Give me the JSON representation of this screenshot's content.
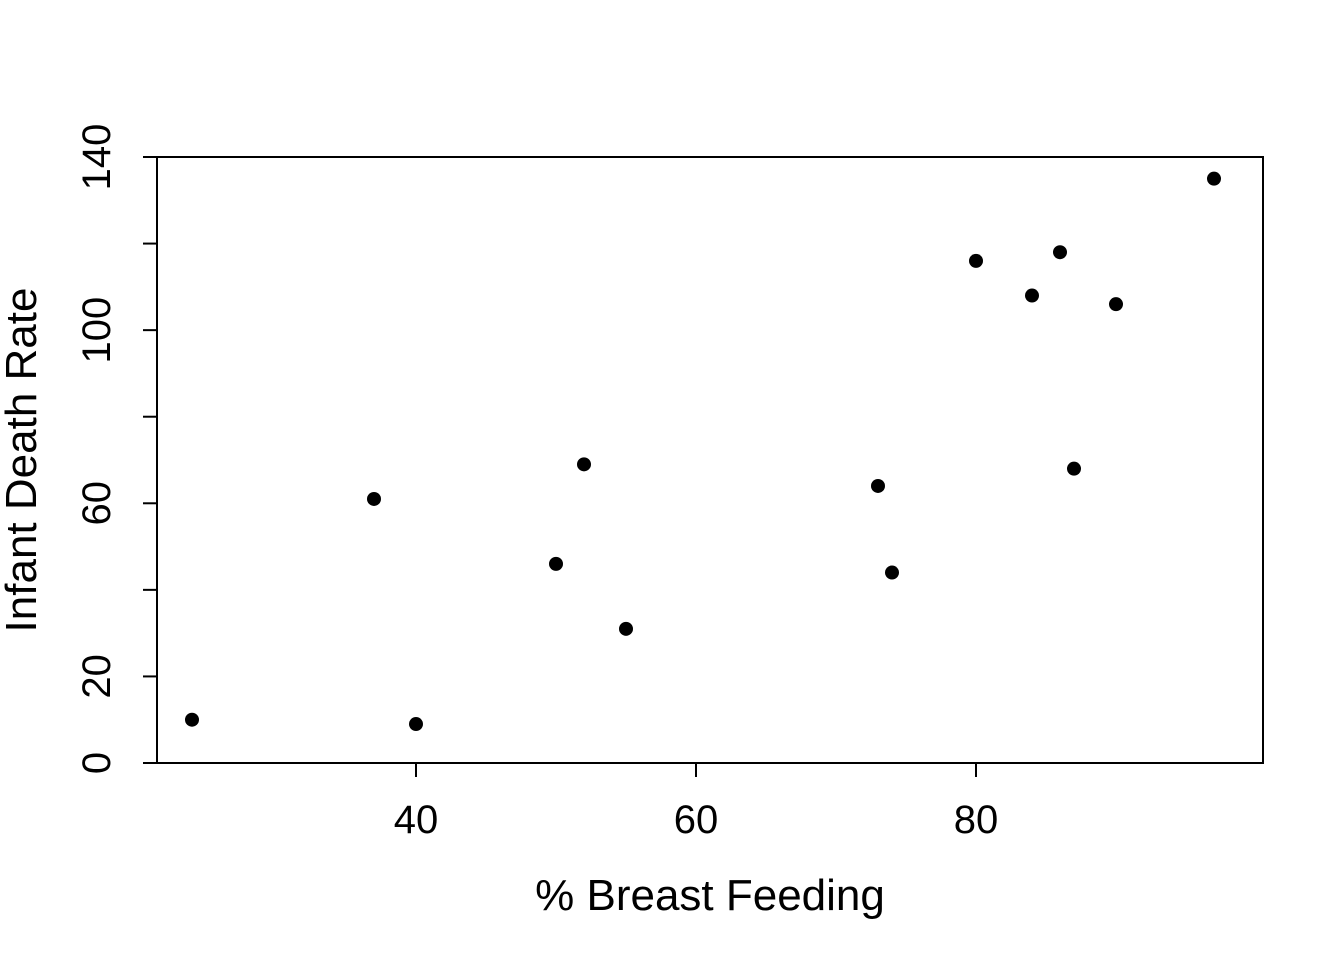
{
  "chart_data": {
    "type": "scatter",
    "title": "",
    "xlabel": "% Breast Feeding",
    "ylabel": "Infant Death Rate",
    "xlim": [
      21.5,
      100.5
    ],
    "ylim": [
      0,
      140
    ],
    "xticks": [
      40,
      60,
      80
    ],
    "xtick_labels": [
      "40",
      "60",
      "80"
    ],
    "yticks": [
      0,
      20,
      40,
      60,
      80,
      100,
      120,
      140
    ],
    "ytick_labels": [
      "0",
      "20",
      "",
      "60",
      "",
      "100",
      "",
      "140"
    ],
    "grid": false,
    "legend": "none",
    "point_color": "#000000",
    "points": [
      {
        "x": 24,
        "y": 10
      },
      {
        "x": 37,
        "y": 61
      },
      {
        "x": 40,
        "y": 9
      },
      {
        "x": 50,
        "y": 46
      },
      {
        "x": 52,
        "y": 69
      },
      {
        "x": 55,
        "y": 31
      },
      {
        "x": 73,
        "y": 64
      },
      {
        "x": 74,
        "y": 44
      },
      {
        "x": 80,
        "y": 116
      },
      {
        "x": 84,
        "y": 108
      },
      {
        "x": 86,
        "y": 118
      },
      {
        "x": 87,
        "y": 68
      },
      {
        "x": 90,
        "y": 106
      },
      {
        "x": 97,
        "y": 135
      }
    ]
  }
}
